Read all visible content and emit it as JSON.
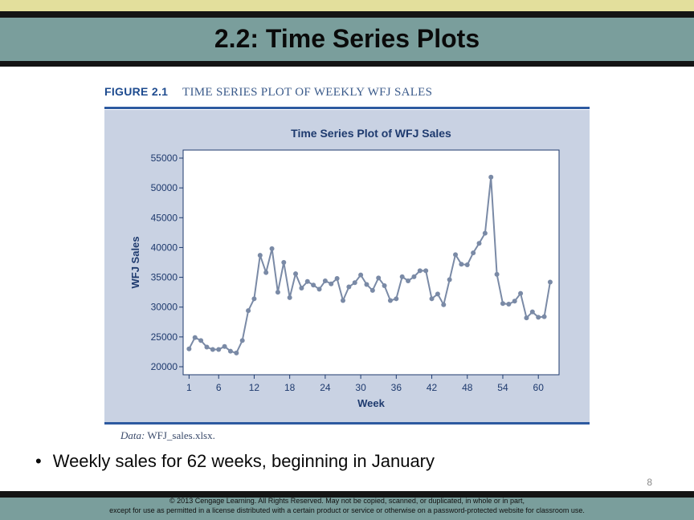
{
  "slide": {
    "title": "2.2: Time Series Plots",
    "figure_label": "FIGURE 2.1",
    "figure_caption": "TIME SERIES PLOT OF WEEKLY WFJ SALES",
    "data_note_label": "Data:",
    "data_note_file": "WFJ_sales.xlsx.",
    "bullet": "Weekly sales for 62 weeks, beginning in January",
    "page_number": "8",
    "footer_line1": "© 2013 Cengage Learning. All Rights Reserved. May not be copied, scanned, or duplicated, in whole or in part,",
    "footer_line2": "except for use as permitted in a license distributed with a certain product or service or otherwise on a password-protected website for classroom use."
  },
  "colors": {
    "title_bar": "#7a9e9c",
    "accent": "#e3df9c",
    "chart_background": "#c9d2e3",
    "series": "#7a8aa6",
    "axis_text": "#1e3a6e"
  },
  "chart_data": {
    "type": "line",
    "title": "Time Series Plot of WFJ Sales",
    "xlabel": "Week",
    "ylabel": "WFJ Sales",
    "xlim": [
      0,
      63.5
    ],
    "ylim": [
      20000,
      55000
    ],
    "xticks": [
      1,
      6,
      12,
      18,
      24,
      30,
      36,
      42,
      48,
      54,
      60
    ],
    "yticks": [
      20000,
      25000,
      30000,
      35000,
      40000,
      45000,
      50000,
      55000
    ],
    "grid": false,
    "series": [
      {
        "x": [
          1,
          2,
          3,
          4,
          5,
          6,
          7,
          8,
          9,
          10,
          11,
          12,
          13,
          14,
          15,
          16,
          17,
          18,
          19,
          20,
          21,
          22,
          23,
          24,
          25,
          26,
          27,
          28,
          29,
          30,
          31,
          32,
          33,
          34,
          35,
          36,
          37,
          38,
          39,
          40,
          41,
          42,
          43,
          44,
          45,
          46,
          47,
          48,
          49,
          50,
          51,
          52,
          53,
          54,
          55,
          56,
          57,
          58,
          59,
          60,
          61,
          62
        ],
        "values": [
          23000,
          24900,
          24400,
          23300,
          22900,
          22900,
          23400,
          22600,
          22300,
          24400,
          29400,
          31400,
          38700,
          35800,
          39800,
          32500,
          37500,
          31600,
          35600,
          33200,
          34300,
          33700,
          33000,
          34400,
          33900,
          34800,
          31100,
          33400,
          34100,
          35400,
          33800,
          32800,
          34900,
          33600,
          31100,
          31400,
          35100,
          34400,
          35100,
          36100,
          36100,
          31400,
          32200,
          30400,
          34600,
          38800,
          37200,
          37100,
          39100,
          40700,
          42400,
          51800,
          35500,
          30600,
          30500,
          31000,
          32300,
          28200,
          29200,
          28300,
          28400,
          34200
        ]
      }
    ]
  }
}
